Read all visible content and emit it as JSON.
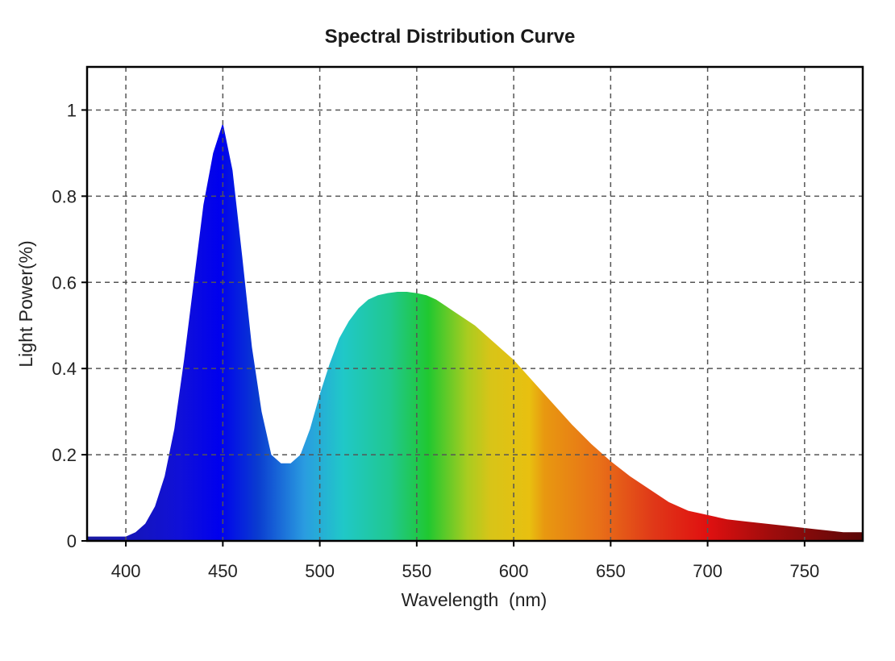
{
  "chart_data": {
    "type": "area",
    "title": "Spectral Distribution Curve",
    "xlabel": "Wavelength  (nm)",
    "ylabel": "Light Power(%)",
    "xlim": [
      380,
      780
    ],
    "ylim": [
      0,
      1.1
    ],
    "x_ticks": [
      400,
      450,
      500,
      550,
      600,
      650,
      700,
      750
    ],
    "y_ticks": [
      0,
      0.2,
      0.4,
      0.6,
      0.8,
      1
    ],
    "y_tick_labels": [
      "0",
      "0.2",
      "0.4",
      "0.6",
      "0.8",
      "1"
    ],
    "grid": true,
    "fill": "visible-spectrum gradient",
    "series": [
      {
        "x": [
          380,
          390,
          400,
          405,
          410,
          415,
          420,
          425,
          430,
          435,
          440,
          445,
          450,
          455,
          460,
          465,
          470,
          475,
          480,
          485,
          490,
          495,
          500,
          505,
          510,
          515,
          520,
          525,
          530,
          535,
          540,
          545,
          550,
          555,
          560,
          565,
          570,
          575,
          580,
          590,
          600,
          610,
          620,
          630,
          640,
          650,
          660,
          670,
          680,
          690,
          700,
          710,
          720,
          730,
          740,
          750,
          760,
          770,
          780
        ],
        "y": [
          0.01,
          0.01,
          0.01,
          0.02,
          0.04,
          0.08,
          0.15,
          0.26,
          0.42,
          0.6,
          0.78,
          0.9,
          0.97,
          0.86,
          0.66,
          0.45,
          0.3,
          0.2,
          0.18,
          0.18,
          0.2,
          0.26,
          0.34,
          0.41,
          0.47,
          0.51,
          0.54,
          0.56,
          0.57,
          0.575,
          0.578,
          0.578,
          0.575,
          0.57,
          0.56,
          0.545,
          0.53,
          0.515,
          0.5,
          0.46,
          0.42,
          0.37,
          0.32,
          0.27,
          0.225,
          0.185,
          0.15,
          0.12,
          0.09,
          0.07,
          0.06,
          0.05,
          0.045,
          0.04,
          0.035,
          0.03,
          0.025,
          0.02,
          0.02
        ]
      }
    ]
  }
}
